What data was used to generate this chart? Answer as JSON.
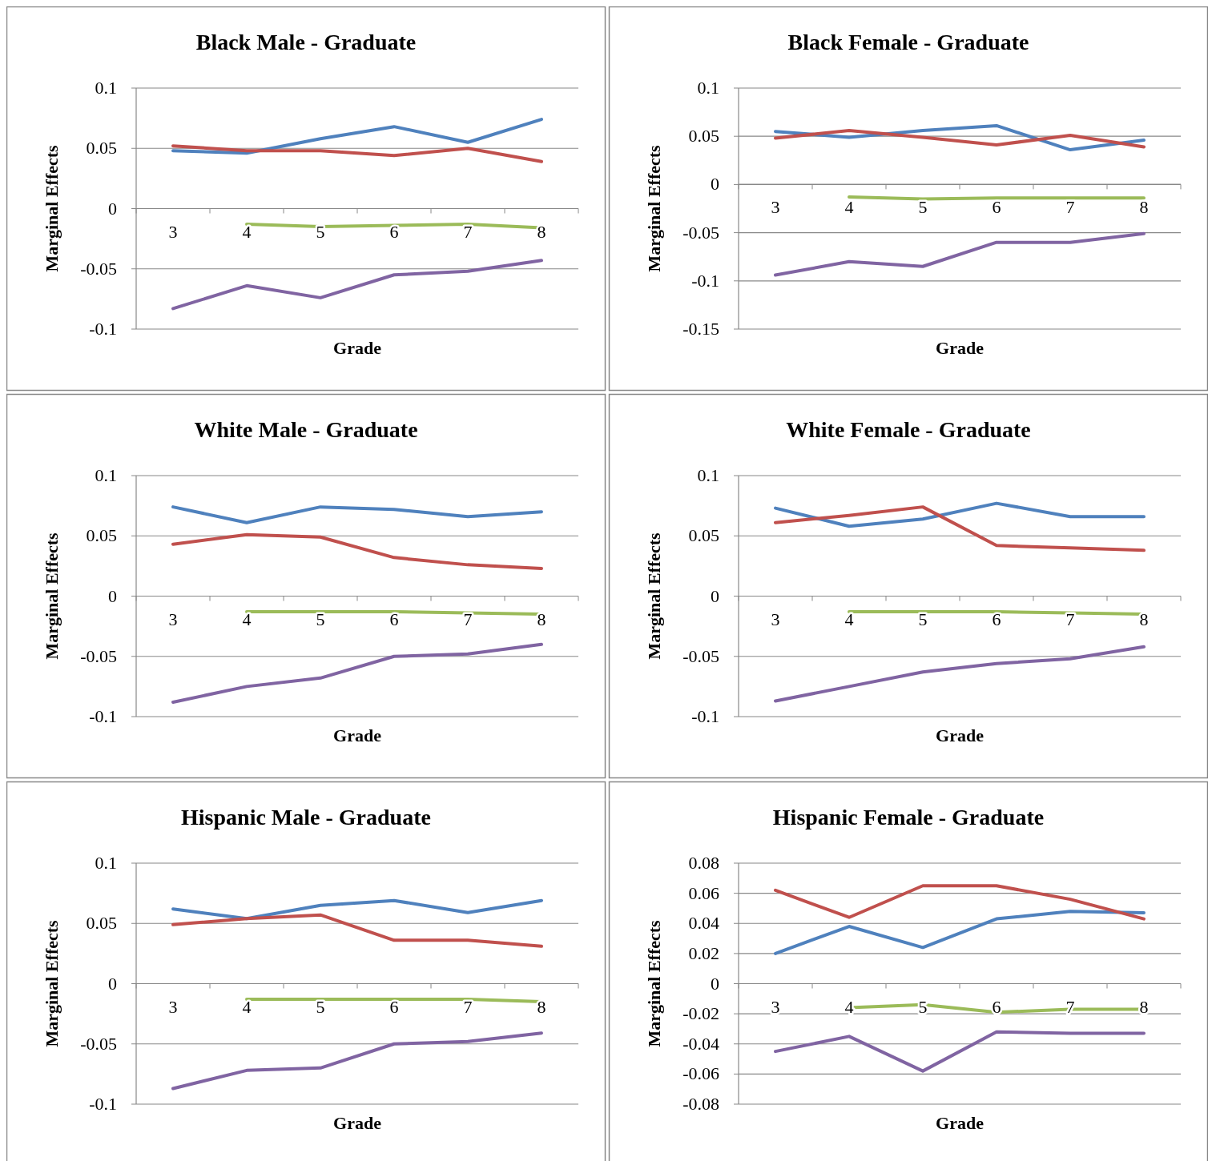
{
  "chart_data": [
    {
      "type": "line",
      "title": "Black Male - Graduate",
      "xlabel": "Grade",
      "ylabel": "Marginal Effects",
      "categories": [
        "3",
        "4",
        "5",
        "6",
        "7",
        "8"
      ],
      "ylim": [
        -0.1,
        0.1
      ],
      "yticks": [
        -0.1,
        -0.05,
        0,
        0.05,
        0.1
      ],
      "grid": "y",
      "marker": "none",
      "series": [
        {
          "color": "#4f81bd",
          "values": [
            0.048,
            0.046,
            0.058,
            0.068,
            0.055,
            0.074
          ]
        },
        {
          "color": "#c0504d",
          "values": [
            0.052,
            0.048,
            0.048,
            0.044,
            0.05,
            0.039
          ]
        },
        {
          "color": "#9bbb59",
          "values": [
            null,
            -0.013,
            -0.015,
            -0.014,
            -0.013,
            -0.016
          ]
        },
        {
          "color": "#8064a2",
          "values": [
            -0.083,
            -0.064,
            -0.074,
            -0.055,
            -0.052,
            -0.043
          ]
        }
      ]
    },
    {
      "type": "line",
      "title": "Black Female - Graduate",
      "xlabel": "Grade",
      "ylabel": "Marginal Effects",
      "categories": [
        "3",
        "4",
        "5",
        "6",
        "7",
        "8"
      ],
      "ylim": [
        -0.15,
        0.1
      ],
      "yticks": [
        -0.15,
        -0.1,
        -0.05,
        0,
        0.05,
        0.1
      ],
      "grid": "y",
      "marker": "none",
      "series": [
        {
          "color": "#4f81bd",
          "values": [
            0.055,
            0.049,
            0.056,
            0.061,
            0.036,
            0.046
          ]
        },
        {
          "color": "#c0504d",
          "values": [
            0.048,
            0.056,
            0.049,
            0.041,
            0.051,
            0.039
          ]
        },
        {
          "color": "#9bbb59",
          "values": [
            null,
            -0.013,
            -0.015,
            -0.014,
            -0.014,
            -0.014
          ]
        },
        {
          "color": "#8064a2",
          "values": [
            -0.094,
            -0.08,
            -0.085,
            -0.06,
            -0.06,
            -0.051
          ]
        }
      ]
    },
    {
      "type": "line",
      "title": "White Male - Graduate",
      "xlabel": "Grade",
      "ylabel": "Marginal Effects",
      "categories": [
        "3",
        "4",
        "5",
        "6",
        "7",
        "8"
      ],
      "ylim": [
        -0.1,
        0.1
      ],
      "yticks": [
        -0.1,
        -0.05,
        0,
        0.05,
        0.1
      ],
      "grid": "y",
      "marker": "none",
      "series": [
        {
          "color": "#4f81bd",
          "values": [
            0.074,
            0.061,
            0.074,
            0.072,
            0.066,
            0.07
          ]
        },
        {
          "color": "#c0504d",
          "values": [
            0.043,
            0.051,
            0.049,
            0.032,
            0.026,
            0.023
          ]
        },
        {
          "color": "#9bbb59",
          "values": [
            null,
            -0.013,
            -0.013,
            -0.013,
            -0.014,
            -0.015
          ]
        },
        {
          "color": "#8064a2",
          "values": [
            -0.088,
            -0.075,
            -0.068,
            -0.05,
            -0.048,
            -0.04
          ]
        }
      ]
    },
    {
      "type": "line",
      "title": "White Female - Graduate",
      "xlabel": "Grade",
      "ylabel": "Marginal Effects",
      "categories": [
        "3",
        "4",
        "5",
        "6",
        "7",
        "8"
      ],
      "ylim": [
        -0.1,
        0.1
      ],
      "yticks": [
        -0.1,
        -0.05,
        0,
        0.05,
        0.1
      ],
      "grid": "y",
      "marker": "none",
      "series": [
        {
          "color": "#4f81bd",
          "values": [
            0.073,
            0.058,
            0.064,
            0.077,
            0.066,
            0.066
          ]
        },
        {
          "color": "#c0504d",
          "values": [
            0.061,
            0.067,
            0.074,
            0.042,
            0.04,
            0.038
          ]
        },
        {
          "color": "#9bbb59",
          "values": [
            null,
            -0.013,
            -0.013,
            -0.013,
            -0.014,
            -0.015
          ]
        },
        {
          "color": "#8064a2",
          "values": [
            -0.087,
            -0.075,
            -0.063,
            -0.056,
            -0.052,
            -0.042
          ]
        }
      ]
    },
    {
      "type": "line",
      "title": "Hispanic Male - Graduate",
      "xlabel": "Grade",
      "ylabel": "Marginal Effects",
      "categories": [
        "3",
        "4",
        "5",
        "6",
        "7",
        "8"
      ],
      "ylim": [
        -0.1,
        0.1
      ],
      "yticks": [
        -0.1,
        -0.05,
        0,
        0.05,
        0.1
      ],
      "grid": "y",
      "marker": "none",
      "series": [
        {
          "color": "#4f81bd",
          "values": [
            0.062,
            0.054,
            0.065,
            0.069,
            0.059,
            0.069
          ]
        },
        {
          "color": "#c0504d",
          "values": [
            0.049,
            0.054,
            0.057,
            0.036,
            0.036,
            0.031
          ]
        },
        {
          "color": "#9bbb59",
          "values": [
            null,
            -0.013,
            -0.013,
            -0.013,
            -0.013,
            -0.015
          ]
        },
        {
          "color": "#8064a2",
          "values": [
            -0.087,
            -0.072,
            -0.07,
            -0.05,
            -0.048,
            -0.041
          ]
        }
      ]
    },
    {
      "type": "line",
      "title": "Hispanic Female - Graduate",
      "xlabel": "Grade",
      "ylabel": "Marginal Effects",
      "categories": [
        "3",
        "4",
        "5",
        "6",
        "7",
        "8"
      ],
      "ylim": [
        -0.08,
        0.08
      ],
      "yticks": [
        -0.08,
        -0.06,
        -0.04,
        -0.02,
        0,
        0.02,
        0.04,
        0.06,
        0.08
      ],
      "grid": "y",
      "marker": "none",
      "series": [
        {
          "color": "#4f81bd",
          "values": [
            0.02,
            0.038,
            0.024,
            0.043,
            0.048,
            0.047
          ]
        },
        {
          "color": "#c0504d",
          "values": [
            0.062,
            0.044,
            0.065,
            0.065,
            0.056,
            0.043
          ]
        },
        {
          "color": "#9bbb59",
          "values": [
            null,
            -0.016,
            -0.014,
            -0.019,
            -0.017,
            -0.017
          ]
        },
        {
          "color": "#8064a2",
          "values": [
            -0.045,
            -0.035,
            -0.058,
            -0.032,
            -0.033,
            -0.033
          ]
        }
      ]
    }
  ]
}
